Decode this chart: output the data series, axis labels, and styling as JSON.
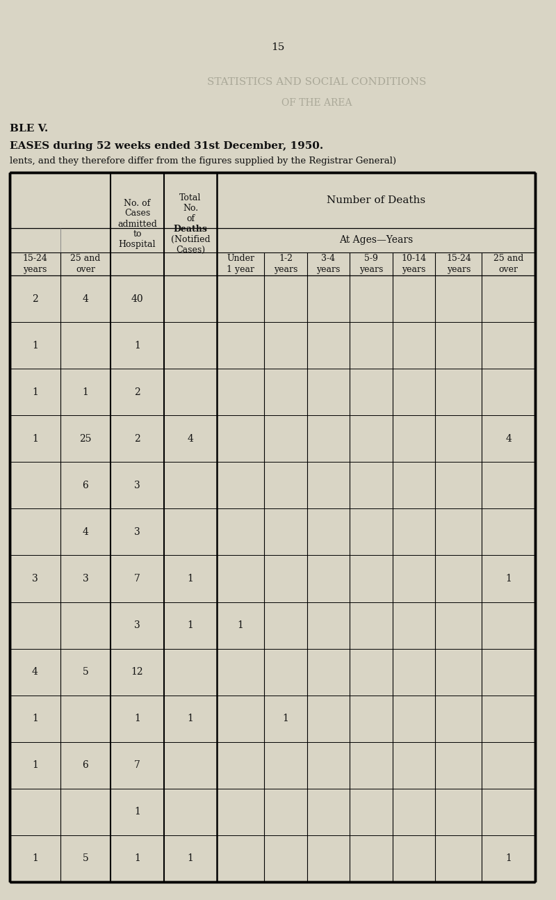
{
  "page_number": "15",
  "title_line1": "BLE V.",
  "title_line2": "EASES during 52 weeks ended 31st December, 1950.",
  "subtitle": "lents, and they therefore differ from the figures supplied by the Registrar General)",
  "mirror_line1": "STATISTICS AND SOCIAL CONDITIONS",
  "mirror_line2": "OF THE AREA",
  "bg_color": "#d9d5c5",
  "text_color": "#111111",
  "rows": [
    [
      "2",
      "4",
      "40",
      "",
      "",
      "",
      "",
      "",
      "",
      "",
      ""
    ],
    [
      "1",
      "",
      "1",
      "",
      "",
      "",
      "",
      "",
      "",
      "",
      ""
    ],
    [
      "1",
      "1",
      "2",
      "",
      "",
      "",
      "",
      "",
      "",
      "",
      ""
    ],
    [
      "1",
      "25",
      "2",
      "4",
      "",
      "",
      "",
      "",
      "",
      "",
      "4"
    ],
    [
      "",
      "6",
      "3",
      "",
      "",
      "",
      "",
      "",
      "",
      "",
      ""
    ],
    [
      "",
      "4",
      "3",
      "",
      "",
      "",
      "",
      "",
      "",
      "",
      ""
    ],
    [
      "3",
      "3",
      "7",
      "1",
      "",
      "",
      "",
      "",
      "",
      "",
      "1"
    ],
    [
      "",
      "",
      "3",
      "1",
      "1",
      "",
      "",
      "",
      "",
      "",
      ""
    ],
    [
      "4",
      "5",
      "12",
      "",
      "",
      "",
      "",
      "",
      "",
      "",
      ""
    ],
    [
      "1",
      "",
      "1",
      "1",
      "",
      "1",
      "",
      "",
      "",
      "",
      ""
    ],
    [
      "1",
      "6",
      "7",
      "",
      "",
      "",
      "",
      "",
      "",
      "",
      ""
    ],
    [
      "",
      "",
      "1",
      "",
      "",
      "",
      "",
      "",
      "",
      "",
      ""
    ],
    [
      "1",
      "5",
      "1",
      "1",
      "",
      "",
      "",
      "",
      "",
      "",
      "1"
    ]
  ]
}
